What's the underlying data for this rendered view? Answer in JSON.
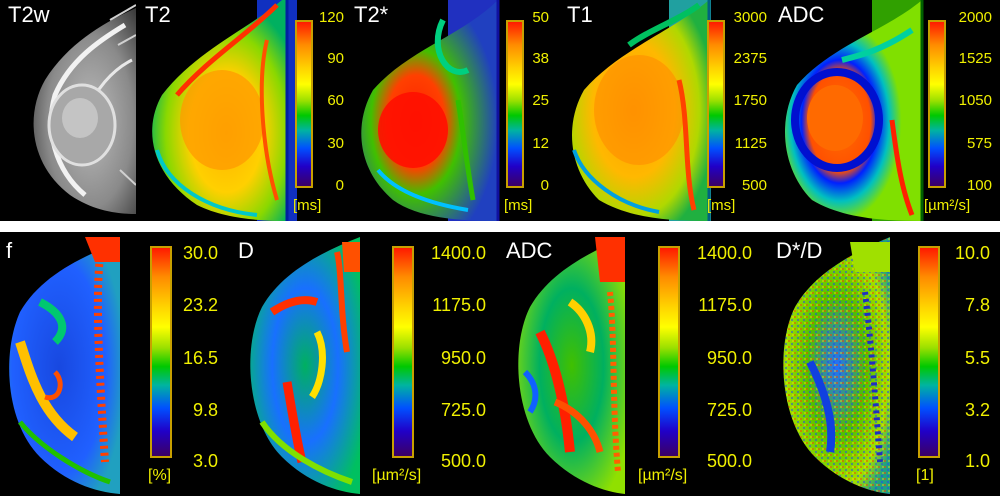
{
  "row1": {
    "panels": [
      {
        "label": "T2w"
      },
      {
        "label": "T2",
        "ticks": [
          "120",
          "90",
          "60",
          "30",
          "0"
        ],
        "unit": "[ms]"
      },
      {
        "label": "T2*",
        "ticks": [
          "50",
          "38",
          "25",
          "12",
          "0"
        ],
        "unit": "[ms]"
      },
      {
        "label": "T1",
        "ticks": [
          "3000",
          "2375",
          "1750",
          "1125",
          "500"
        ],
        "unit": "[ms]"
      },
      {
        "label": "ADC",
        "ticks": [
          "2000",
          "1525",
          "1050",
          "575",
          "100"
        ],
        "unit": "[µm²/s]"
      }
    ]
  },
  "row2": {
    "panels": [
      {
        "label": "f",
        "ticks": [
          "30.0",
          "23.2",
          "16.5",
          "9.8",
          "3.0"
        ],
        "unit": "[%]"
      },
      {
        "label": "D",
        "ticks": [
          "1400.0",
          "1175.0",
          "950.0",
          "725.0",
          "500.0"
        ],
        "unit": "[µm²/s]"
      },
      {
        "label": "ADC",
        "ticks": [
          "1400.0",
          "1175.0",
          "950.0",
          "725.0",
          "500.0"
        ],
        "unit": "[µm²/s]"
      },
      {
        "label": "D*/D",
        "ticks": [
          "10.0",
          "7.8",
          "5.5",
          "3.2",
          "1.0"
        ],
        "unit": "[1]"
      }
    ]
  },
  "colormap": {
    "high": "#ff1a00",
    "upper": "#ffd200",
    "mid": "#00c800",
    "lower": "#0050ff",
    "low": "#3c0064",
    "tick_text": "#f0f000",
    "colorbar_border": "#c8a000"
  }
}
